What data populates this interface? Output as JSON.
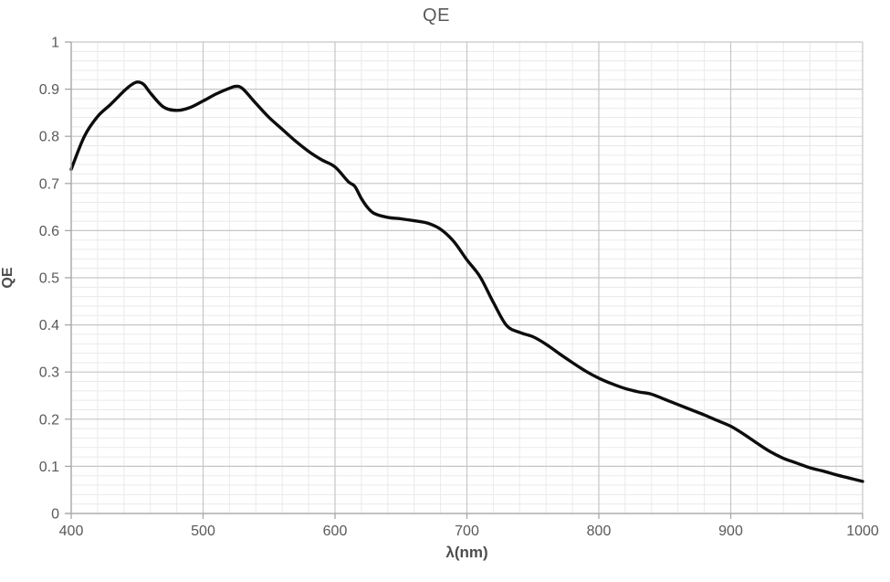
{
  "page": {
    "background": "#ffffff"
  },
  "colors": {
    "series_line": "#0d0d0d",
    "major_grid": "#c6c6c6",
    "minor_grid": "#eaeaea",
    "axis_line": "#a6a6a6",
    "text": "#595959"
  },
  "chart_data": {
    "type": "line",
    "title": "QE",
    "xlabel": "λ(nm)",
    "ylabel": "QE",
    "xlim": [
      400,
      1000
    ],
    "ylim": [
      0,
      1
    ],
    "x_major_step": 100,
    "x_minor_step": 20,
    "y_major_step": 0.1,
    "y_minor_step": 0.02,
    "grid": "major+minor",
    "legend": "none",
    "x_tick_labels": [
      "400",
      "500",
      "600",
      "700",
      "800",
      "900",
      "1000"
    ],
    "y_tick_labels": [
      "0",
      "0.1",
      "0.2",
      "0.3",
      "0.4",
      "0.5",
      "0.6",
      "0.7",
      "0.8",
      "0.9",
      "1"
    ],
    "series": [
      {
        "name": "QE",
        "line_width": 3.4,
        "points": [
          [
            400,
            0.73
          ],
          [
            410,
            0.8
          ],
          [
            420,
            0.842
          ],
          [
            430,
            0.868
          ],
          [
            440,
            0.896
          ],
          [
            445,
            0.908
          ],
          [
            450,
            0.915
          ],
          [
            455,
            0.91
          ],
          [
            460,
            0.892
          ],
          [
            470,
            0.862
          ],
          [
            480,
            0.855
          ],
          [
            490,
            0.861
          ],
          [
            500,
            0.875
          ],
          [
            510,
            0.89
          ],
          [
            520,
            0.902
          ],
          [
            525,
            0.906
          ],
          [
            530,
            0.901
          ],
          [
            540,
            0.87
          ],
          [
            550,
            0.84
          ],
          [
            560,
            0.815
          ],
          [
            570,
            0.79
          ],
          [
            580,
            0.768
          ],
          [
            590,
            0.75
          ],
          [
            600,
            0.735
          ],
          [
            610,
            0.704
          ],
          [
            615,
            0.694
          ],
          [
            620,
            0.668
          ],
          [
            625,
            0.648
          ],
          [
            630,
            0.636
          ],
          [
            640,
            0.628
          ],
          [
            650,
            0.625
          ],
          [
            660,
            0.621
          ],
          [
            670,
            0.616
          ],
          [
            680,
            0.603
          ],
          [
            690,
            0.577
          ],
          [
            700,
            0.538
          ],
          [
            710,
            0.502
          ],
          [
            720,
            0.448
          ],
          [
            730,
            0.399
          ],
          [
            740,
            0.384
          ],
          [
            750,
            0.375
          ],
          [
            760,
            0.359
          ],
          [
            770,
            0.339
          ],
          [
            780,
            0.32
          ],
          [
            790,
            0.302
          ],
          [
            800,
            0.287
          ],
          [
            810,
            0.275
          ],
          [
            820,
            0.265
          ],
          [
            830,
            0.258
          ],
          [
            840,
            0.253
          ],
          [
            850,
            0.242
          ],
          [
            860,
            0.231
          ],
          [
            870,
            0.22
          ],
          [
            880,
            0.209
          ],
          [
            890,
            0.197
          ],
          [
            900,
            0.185
          ],
          [
            910,
            0.168
          ],
          [
            920,
            0.149
          ],
          [
            930,
            0.131
          ],
          [
            940,
            0.117
          ],
          [
            950,
            0.107
          ],
          [
            960,
            0.097
          ],
          [
            970,
            0.09
          ],
          [
            980,
            0.082
          ],
          [
            990,
            0.075
          ],
          [
            1000,
            0.068
          ]
        ]
      }
    ]
  }
}
